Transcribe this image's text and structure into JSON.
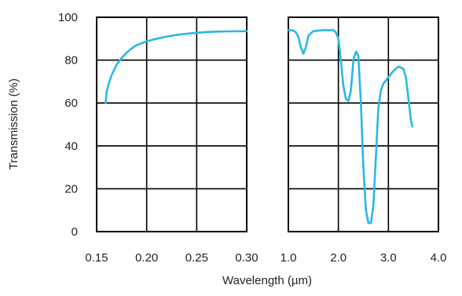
{
  "chart_data": {
    "type": "line",
    "ylabel": "Transmission (%)",
    "xlabel": "Wavelength (µm)",
    "ylim": [
      0,
      100
    ],
    "yticks": [
      "0",
      "20",
      "40",
      "60",
      "80",
      "100"
    ],
    "grid": true,
    "line_color": "#29b8e5",
    "panels": [
      {
        "xlim": [
          0.15,
          0.3
        ],
        "xticks": [
          "0.15",
          "0.20",
          "0.25",
          "0.30"
        ],
        "points": [
          [
            0.159,
            60
          ],
          [
            0.16,
            65
          ],
          [
            0.162,
            69
          ],
          [
            0.165,
            73
          ],
          [
            0.17,
            78
          ],
          [
            0.175,
            81
          ],
          [
            0.18,
            83.5
          ],
          [
            0.185,
            85.5
          ],
          [
            0.19,
            87
          ],
          [
            0.2,
            88.8
          ],
          [
            0.21,
            90
          ],
          [
            0.22,
            91
          ],
          [
            0.23,
            91.8
          ],
          [
            0.24,
            92.3
          ],
          [
            0.25,
            92.8
          ],
          [
            0.26,
            93.1
          ],
          [
            0.27,
            93.3
          ],
          [
            0.28,
            93.4
          ],
          [
            0.3,
            93.5
          ]
        ]
      },
      {
        "xlim": [
          1.0,
          4.0
        ],
        "xticks": [
          "1.0",
          "2.0",
          "3.0",
          "4.0"
        ],
        "points": [
          [
            1.0,
            94
          ],
          [
            1.1,
            93.8
          ],
          [
            1.15,
            93
          ],
          [
            1.2,
            91
          ],
          [
            1.25,
            86
          ],
          [
            1.3,
            83
          ],
          [
            1.35,
            86
          ],
          [
            1.4,
            91.5
          ],
          [
            1.5,
            93.5
          ],
          [
            1.7,
            94
          ],
          [
            1.9,
            94
          ],
          [
            1.95,
            93
          ],
          [
            2.0,
            90
          ],
          [
            2.05,
            80
          ],
          [
            2.1,
            68
          ],
          [
            2.15,
            62
          ],
          [
            2.2,
            61
          ],
          [
            2.25,
            66
          ],
          [
            2.3,
            80
          ],
          [
            2.35,
            84
          ],
          [
            2.4,
            82
          ],
          [
            2.45,
            60
          ],
          [
            2.5,
            30
          ],
          [
            2.55,
            10
          ],
          [
            2.6,
            4
          ],
          [
            2.65,
            4
          ],
          [
            2.7,
            12
          ],
          [
            2.75,
            35
          ],
          [
            2.8,
            58
          ],
          [
            2.85,
            66
          ],
          [
            2.9,
            69
          ],
          [
            3.0,
            72
          ],
          [
            3.1,
            75
          ],
          [
            3.2,
            77
          ],
          [
            3.3,
            76
          ],
          [
            3.35,
            72
          ],
          [
            3.4,
            62
          ],
          [
            3.45,
            52
          ],
          [
            3.48,
            49
          ]
        ]
      }
    ]
  }
}
